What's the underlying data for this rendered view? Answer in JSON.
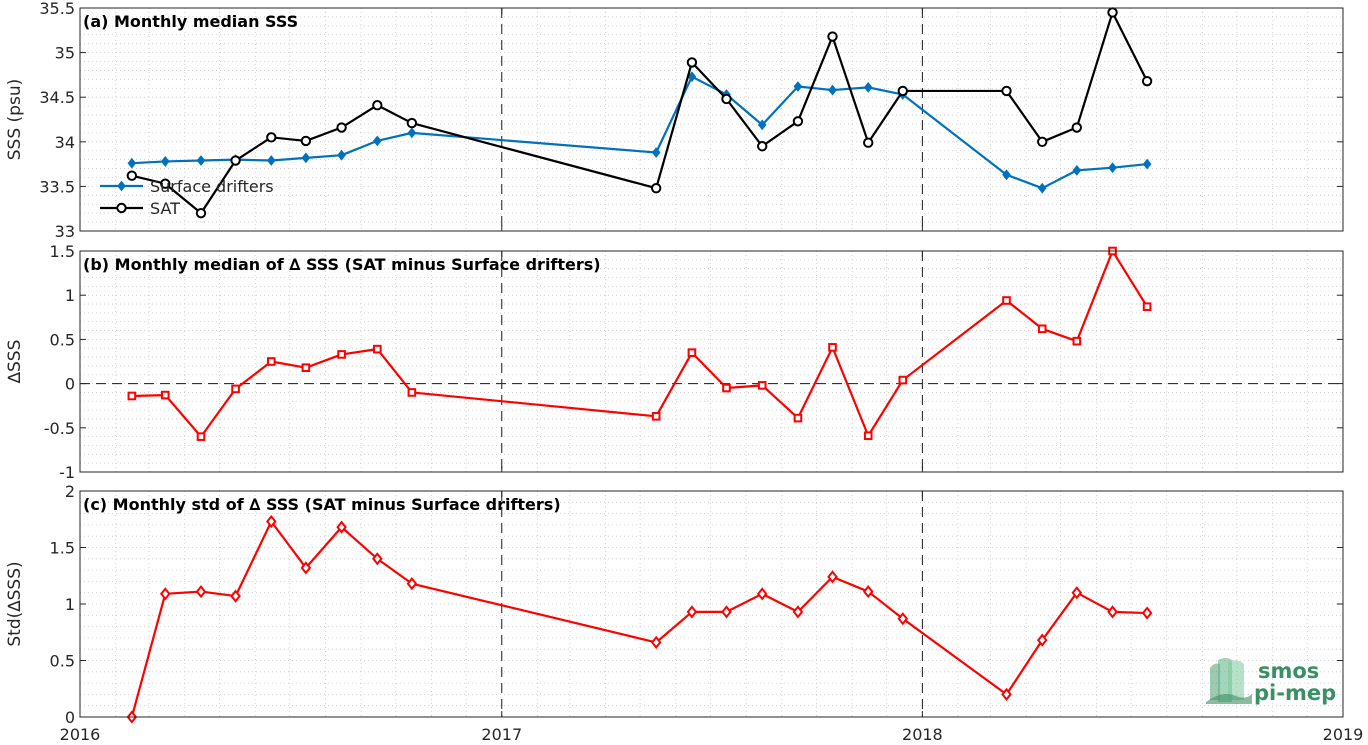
{
  "chart_data": [
    {
      "type": "line",
      "title": "(a) Monthly median SSS",
      "ylabel": "SSS (psu)",
      "ylim": [
        33,
        35.5
      ],
      "yticks": [
        33,
        33.5,
        34,
        34.5,
        35,
        35.5
      ],
      "ytick_labels": [
        "33",
        "33.5",
        "34",
        "34.5",
        "35",
        "35.5"
      ],
      "xlim": [
        "2016-01-01",
        "2019-01-01"
      ],
      "grid": true,
      "legend_position": "lower-left",
      "series": [
        {
          "name": "Surface drifters",
          "color": "#0072BD",
          "marker": "diamond",
          "x": [
            "2016-02-15",
            "2016-03-15",
            "2016-04-15",
            "2016-05-15",
            "2016-06-15",
            "2016-07-15",
            "2016-08-15",
            "2016-09-15",
            "2016-10-15",
            "2017-05-15",
            "2017-06-15",
            "2017-07-15",
            "2017-08-15",
            "2017-09-15",
            "2017-10-15",
            "2017-11-15",
            "2017-12-15",
            "2018-03-15",
            "2018-04-15",
            "2018-05-15",
            "2018-06-15",
            "2018-07-15"
          ],
          "values": [
            33.76,
            33.78,
            33.79,
            33.8,
            33.79,
            33.82,
            33.85,
            34.01,
            34.1,
            33.88,
            34.73,
            34.53,
            34.19,
            34.62,
            34.58,
            34.61,
            34.53,
            33.63,
            33.48,
            33.68,
            33.71,
            33.75
          ]
        },
        {
          "name": "SAT",
          "color": "#000000",
          "marker": "circle",
          "x": [
            "2016-02-15",
            "2016-03-15",
            "2016-04-15",
            "2016-05-15",
            "2016-06-15",
            "2016-07-15",
            "2016-08-15",
            "2016-09-15",
            "2016-10-15",
            "2017-05-15",
            "2017-06-15",
            "2017-07-15",
            "2017-08-15",
            "2017-09-15",
            "2017-10-15",
            "2017-11-15",
            "2017-12-15",
            "2018-03-15",
            "2018-04-15",
            "2018-05-15",
            "2018-06-15",
            "2018-07-15"
          ],
          "values": [
            33.62,
            33.53,
            33.2,
            33.79,
            34.05,
            34.01,
            34.16,
            34.41,
            34.21,
            33.48,
            34.89,
            34.48,
            33.95,
            34.23,
            35.18,
            33.99,
            34.57,
            34.57,
            34.0,
            34.16,
            35.45,
            34.68
          ]
        }
      ]
    },
    {
      "type": "line",
      "title": "(b) Monthly median of ∆ SSS (SAT minus Surface drifters)",
      "ylabel": "∆SSS",
      "ylim": [
        -1,
        1.5
      ],
      "yticks": [
        -1,
        -0.5,
        0,
        0.5,
        1,
        1.5
      ],
      "ytick_labels": [
        "-1",
        "-0.5",
        "0",
        "0.5",
        "1",
        "1.5"
      ],
      "xlim": [
        "2016-01-01",
        "2019-01-01"
      ],
      "grid": true,
      "zero_line": true,
      "series": [
        {
          "color": "#FF0000",
          "marker": "square",
          "x": [
            "2016-02-15",
            "2016-03-15",
            "2016-04-15",
            "2016-05-15",
            "2016-06-15",
            "2016-07-15",
            "2016-08-15",
            "2016-09-15",
            "2016-10-15",
            "2017-05-15",
            "2017-06-15",
            "2017-07-15",
            "2017-08-15",
            "2017-09-15",
            "2017-10-15",
            "2017-11-15",
            "2017-12-15",
            "2018-03-15",
            "2018-04-15",
            "2018-05-15",
            "2018-06-15",
            "2018-07-15"
          ],
          "values": [
            -0.14,
            -0.13,
            -0.6,
            -0.06,
            0.25,
            0.18,
            0.33,
            0.39,
            -0.1,
            -0.37,
            0.35,
            -0.05,
            -0.02,
            -0.39,
            0.41,
            -0.59,
            0.04,
            0.94,
            0.62,
            0.48,
            1.5,
            0.87
          ]
        }
      ]
    },
    {
      "type": "line",
      "title": "(c) Monthly std of ∆ SSS (SAT minus Surface drifters)",
      "ylabel": "Std(∆SSS)",
      "ylim": [
        0,
        2
      ],
      "yticks": [
        0,
        0.5,
        1,
        1.5,
        2
      ],
      "ytick_labels": [
        "0",
        "0.5",
        "1",
        "1.5",
        "2"
      ],
      "xlim": [
        "2016-01-01",
        "2019-01-01"
      ],
      "xticks": [
        "2016-01-01",
        "2017-01-01",
        "2018-01-01",
        "2019-01-01"
      ],
      "xtick_labels": [
        "2016",
        "2017",
        "2018",
        "2019"
      ],
      "grid": true,
      "series": [
        {
          "color": "#FF0000",
          "marker": "diamond",
          "x": [
            "2016-02-15",
            "2016-03-15",
            "2016-04-15",
            "2016-05-15",
            "2016-06-15",
            "2016-07-15",
            "2016-08-15",
            "2016-09-15",
            "2016-10-15",
            "2017-05-15",
            "2017-06-15",
            "2017-07-15",
            "2017-08-15",
            "2017-09-15",
            "2017-10-15",
            "2017-11-15",
            "2017-12-15",
            "2018-03-15",
            "2018-04-15",
            "2018-05-15",
            "2018-06-15",
            "2018-07-15"
          ],
          "values": [
            0.0,
            1.09,
            1.11,
            1.07,
            1.73,
            1.32,
            1.68,
            1.4,
            1.18,
            0.66,
            0.93,
            0.93,
            1.09,
            0.93,
            1.24,
            1.11,
            0.87,
            0.2,
            0.68,
            1.1,
            0.93,
            0.92
          ]
        }
      ]
    }
  ],
  "logo": {
    "line1": "smos",
    "line2": "pi-mep"
  }
}
